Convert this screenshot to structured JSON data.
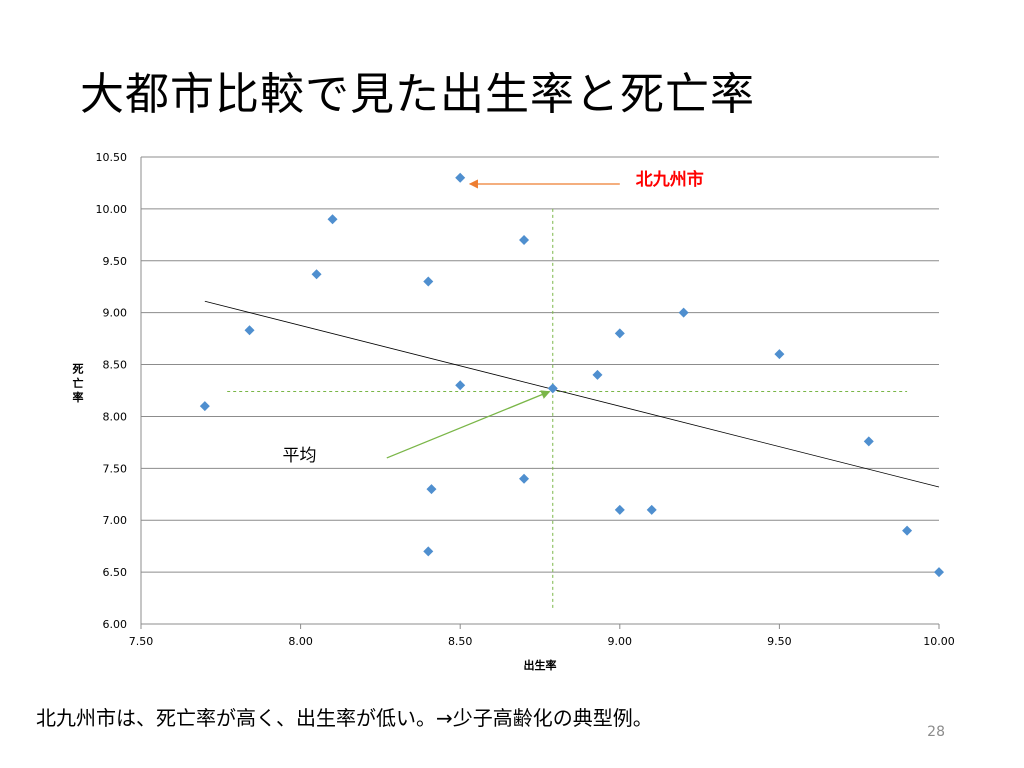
{
  "slide": {
    "title": "大都市比較で見た出生率と死亡率",
    "caption": "北九州市は、死亡率が高く、出生率が低い。→少子高齢化の典型例。",
    "page_number": "28"
  },
  "chart_data": {
    "type": "scatter",
    "title": "",
    "xlabel": "出生率",
    "ylabel": "死亡率",
    "xlim": [
      7.5,
      10.0
    ],
    "ylim": [
      6.0,
      10.5
    ],
    "x_ticks": [
      "7.50",
      "8.00",
      "8.50",
      "9.00",
      "9.50",
      "10.00"
    ],
    "y_ticks": [
      "6.00",
      "6.50",
      "7.00",
      "7.50",
      "8.00",
      "8.50",
      "9.00",
      "9.50",
      "10.00",
      "10.50"
    ],
    "grid": "horizontal",
    "marker_color": "#4f8fcf",
    "points": [
      {
        "x": 7.7,
        "y": 8.1
      },
      {
        "x": 7.84,
        "y": 8.83
      },
      {
        "x": 8.05,
        "y": 9.37
      },
      {
        "x": 8.1,
        "y": 9.9
      },
      {
        "x": 8.4,
        "y": 9.3
      },
      {
        "x": 8.4,
        "y": 6.7
      },
      {
        "x": 8.41,
        "y": 7.3
      },
      {
        "x": 8.5,
        "y": 10.3
      },
      {
        "x": 8.5,
        "y": 8.3
      },
      {
        "x": 8.7,
        "y": 9.7
      },
      {
        "x": 8.7,
        "y": 7.4
      },
      {
        "x": 8.79,
        "y": 8.27
      },
      {
        "x": 8.93,
        "y": 8.4
      },
      {
        "x": 9.0,
        "y": 8.8
      },
      {
        "x": 9.0,
        "y": 7.1
      },
      {
        "x": 9.1,
        "y": 7.1
      },
      {
        "x": 9.2,
        "y": 9.0
      },
      {
        "x": 9.5,
        "y": 8.6
      },
      {
        "x": 9.78,
        "y": 7.76
      },
      {
        "x": 9.9,
        "y": 6.9
      },
      {
        "x": 10.0,
        "y": 6.5
      }
    ],
    "trendline": {
      "x": [
        7.7,
        10.0
      ],
      "y": [
        9.11,
        7.32
      ],
      "color": "#000000"
    },
    "average": {
      "x": 8.79,
      "y": 8.24,
      "x_range": [
        7.77,
        9.9
      ],
      "y_range": [
        6.15,
        10.0
      ],
      "color": "#7ab648"
    },
    "annotations": [
      {
        "text": "北九州市",
        "color": "#ff0000",
        "arrow_color": "#ed7d31",
        "text_x": 9.05,
        "text_y": 10.24,
        "arrow_from_x": 9.0,
        "arrow_from_y": 10.24,
        "arrow_to_x": 8.53,
        "arrow_to_y": 10.24
      },
      {
        "text": "平均",
        "color": "#000000",
        "arrow_color": "#7ab648",
        "text_x": 8.05,
        "text_y": 7.58,
        "arrow_from_x": 8.27,
        "arrow_from_y": 7.6,
        "arrow_to_x": 8.78,
        "arrow_to_y": 8.24
      }
    ]
  }
}
